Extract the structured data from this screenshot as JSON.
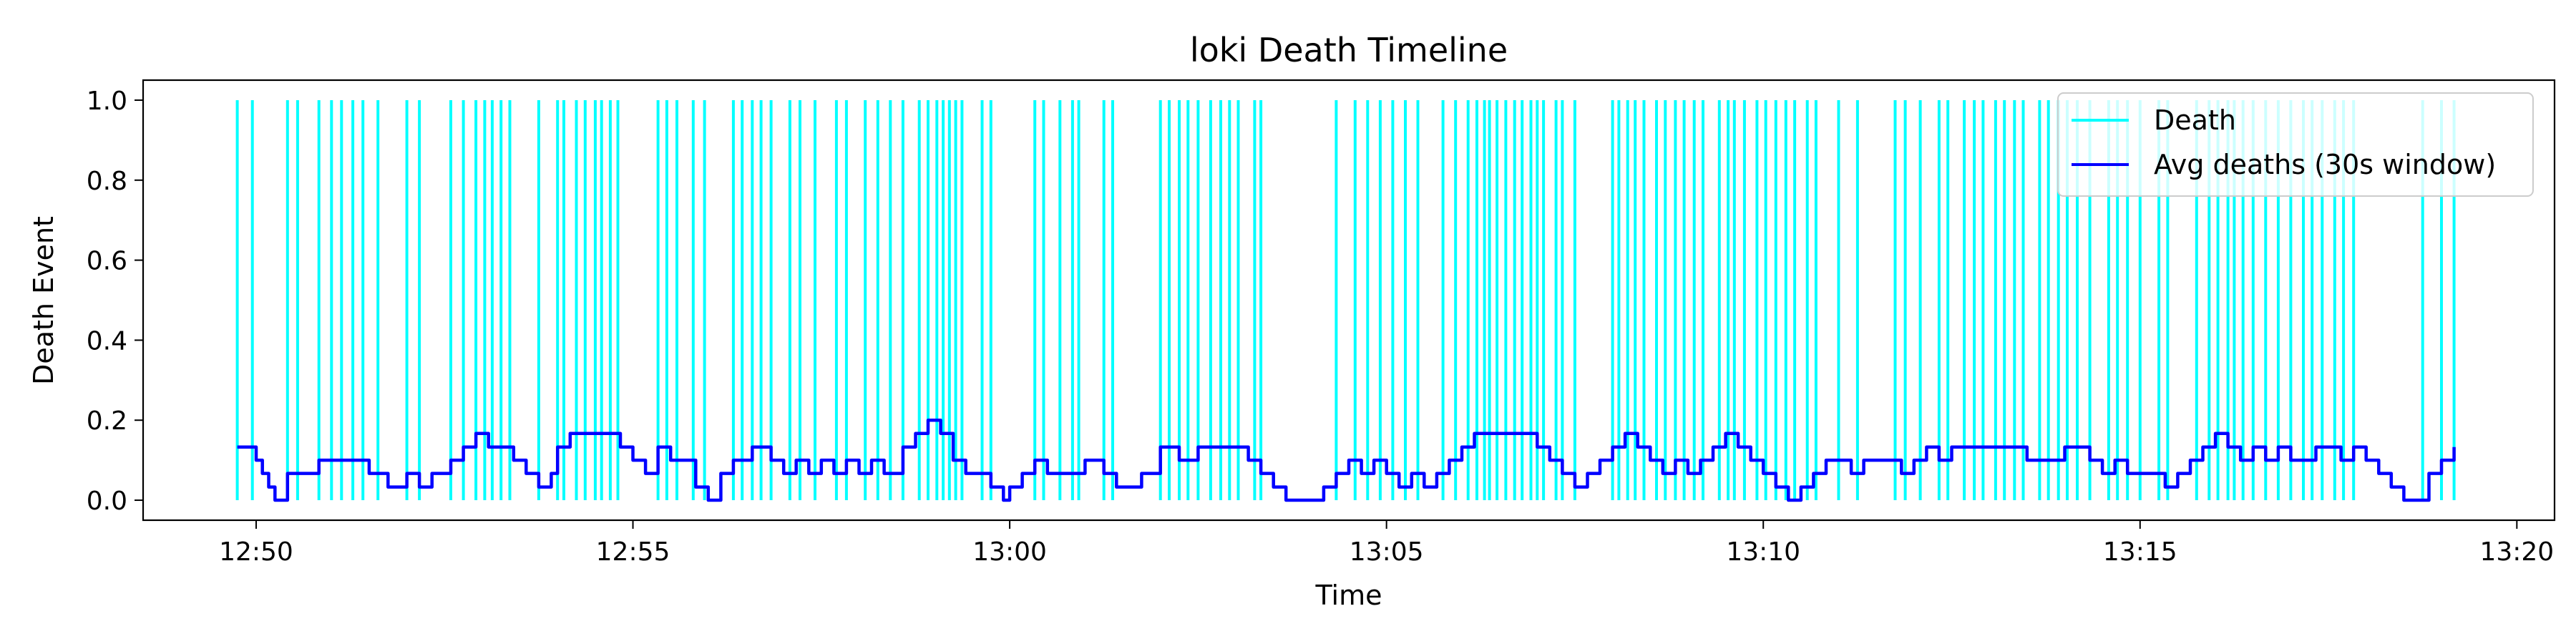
{
  "chart_data": {
    "type": "line",
    "title": "loki Death Timeline",
    "xlabel": "Time",
    "ylabel": "Death Event",
    "xlim": [
      "12:48:30",
      "13:20:30"
    ],
    "ylim": [
      -0.05,
      1.05
    ],
    "x_ticks": [
      "12:50",
      "12:55",
      "13:00",
      "13:05",
      "13:10",
      "13:15",
      "13:20"
    ],
    "y_ticks": [
      "0.0",
      "0.2",
      "0.4",
      "0.6",
      "0.8",
      "1.0"
    ],
    "grid": false,
    "legend_position": "top-right",
    "series": [
      {
        "name": "Death",
        "color": "#00FFFF",
        "style": "vertical-lines",
        "value": 1,
        "x": [
          "12:49:45",
          "12:49:57",
          "12:50:25",
          "12:50:33",
          "12:50:50",
          "12:51:00",
          "12:51:08",
          "12:51:17",
          "12:51:25",
          "12:51:37",
          "12:52:00",
          "12:52:10",
          "12:52:35",
          "12:52:45",
          "12:52:55",
          "12:53:02",
          "12:53:08",
          "12:53:15",
          "12:53:22",
          "12:53:45",
          "12:54:00",
          "12:54:05",
          "12:54:15",
          "12:54:22",
          "12:54:30",
          "12:54:35",
          "12:54:42",
          "12:54:48",
          "12:55:20",
          "12:55:27",
          "12:55:35",
          "12:55:48",
          "12:55:57",
          "12:56:20",
          "12:56:27",
          "12:56:35",
          "12:56:42",
          "12:56:50",
          "12:57:05",
          "12:57:13",
          "12:57:25",
          "12:57:42",
          "12:57:50",
          "12:58:05",
          "12:58:15",
          "12:58:25",
          "12:58:35",
          "12:58:48",
          "12:58:55",
          "12:59:02",
          "12:59:07",
          "12:59:12",
          "12:59:17",
          "12:59:22",
          "12:59:38",
          "12:59:45",
          "13:00:20",
          "13:00:27",
          "13:00:40",
          "13:00:50",
          "13:00:55",
          "13:01:15",
          "13:01:22",
          "13:02:00",
          "13:02:07",
          "13:02:15",
          "13:02:22",
          "13:02:30",
          "13:02:40",
          "13:02:48",
          "13:02:55",
          "13:03:02",
          "13:03:15",
          "13:03:20",
          "13:04:20",
          "13:04:35",
          "13:04:45",
          "13:04:55",
          "13:05:05",
          "13:05:15",
          "13:05:25",
          "13:05:45",
          "13:05:55",
          "13:06:05",
          "13:06:12",
          "13:06:18",
          "13:06:22",
          "13:06:28",
          "13:06:35",
          "13:06:42",
          "13:06:48",
          "13:06:55",
          "13:07:00",
          "13:07:05",
          "13:07:15",
          "13:07:20",
          "13:07:30",
          "13:08:00",
          "13:08:05",
          "13:08:12",
          "13:08:18",
          "13:08:25",
          "13:08:35",
          "13:08:42",
          "13:08:50",
          "13:08:57",
          "13:09:05",
          "13:09:12",
          "13:09:25",
          "13:09:32",
          "13:09:37",
          "13:09:45",
          "13:09:55",
          "13:10:02",
          "13:10:10",
          "13:10:18",
          "13:10:25",
          "13:10:35",
          "13:10:42",
          "13:11:00",
          "13:11:15",
          "13:11:45",
          "13:11:53",
          "13:12:05",
          "13:12:20",
          "13:12:27",
          "13:12:40",
          "13:12:48",
          "13:12:55",
          "13:13:05",
          "13:13:12",
          "13:13:20",
          "13:13:27",
          "13:13:40",
          "13:13:47",
          "13:13:55",
          "13:14:02",
          "13:14:10",
          "13:14:20",
          "13:14:35",
          "13:14:42",
          "13:14:50",
          "13:15:00",
          "13:15:15",
          "13:15:22",
          "13:15:45",
          "13:15:55",
          "13:16:02",
          "13:16:10",
          "13:16:15",
          "13:16:22",
          "13:16:30",
          "13:16:40",
          "13:16:50",
          "13:17:00",
          "13:17:10",
          "13:17:17",
          "13:17:25",
          "13:17:35",
          "13:17:42",
          "13:17:50",
          "13:18:45",
          "13:19:00",
          "13:19:10"
        ]
      },
      {
        "name": "Avg deaths (30s window)",
        "color": "#0000FF",
        "style": "step-line",
        "x": [
          "12:49:45",
          "12:50:00",
          "12:50:05",
          "12:50:10",
          "12:50:15",
          "12:50:25",
          "12:50:50",
          "12:51:00",
          "12:51:30",
          "12:51:45",
          "12:52:00",
          "12:52:10",
          "12:52:20",
          "12:52:35",
          "12:52:45",
          "12:52:55",
          "12:53:05",
          "12:53:25",
          "12:53:35",
          "12:53:45",
          "12:53:55",
          "12:54:00",
          "12:54:10",
          "12:54:20",
          "12:54:50",
          "12:55:00",
          "12:55:10",
          "12:55:20",
          "12:55:30",
          "12:55:50",
          "12:56:00",
          "12:56:10",
          "12:56:20",
          "12:56:35",
          "12:56:50",
          "12:57:00",
          "12:57:10",
          "12:57:20",
          "12:57:30",
          "12:57:40",
          "12:57:50",
          "12:58:00",
          "12:58:10",
          "12:58:20",
          "12:58:35",
          "12:58:45",
          "12:58:55",
          "12:59:05",
          "12:59:15",
          "12:59:25",
          "12:59:35",
          "12:59:45",
          "12:59:55",
          "13:00:00",
          "13:00:10",
          "13:00:20",
          "13:00:30",
          "13:00:45",
          "13:01:00",
          "13:01:15",
          "13:01:25",
          "13:01:35",
          "13:01:45",
          "13:02:00",
          "13:02:15",
          "13:02:30",
          "13:03:00",
          "13:03:10",
          "13:03:20",
          "13:03:30",
          "13:03:40",
          "13:04:10",
          "13:04:20",
          "13:04:30",
          "13:04:40",
          "13:04:50",
          "13:05:00",
          "13:05:10",
          "13:05:20",
          "13:05:30",
          "13:05:40",
          "13:05:50",
          "13:06:00",
          "13:06:10",
          "13:06:20",
          "13:07:00",
          "13:07:10",
          "13:07:20",
          "13:07:30",
          "13:07:40",
          "13:07:50",
          "13:08:00",
          "13:08:10",
          "13:08:20",
          "13:08:30",
          "13:08:40",
          "13:08:50",
          "13:09:00",
          "13:09:10",
          "13:09:20",
          "13:09:30",
          "13:09:40",
          "13:09:50",
          "13:10:00",
          "13:10:10",
          "13:10:20",
          "13:10:30",
          "13:10:40",
          "13:10:50",
          "13:11:00",
          "13:11:10",
          "13:11:20",
          "13:11:30",
          "13:11:40",
          "13:11:50",
          "13:12:00",
          "13:12:10",
          "13:12:20",
          "13:12:30",
          "13:13:00",
          "13:13:30",
          "13:14:00",
          "13:14:20",
          "13:14:30",
          "13:14:40",
          "13:14:50",
          "13:15:00",
          "13:15:10",
          "13:15:20",
          "13:15:30",
          "13:15:40",
          "13:15:50",
          "13:16:00",
          "13:16:10",
          "13:16:20",
          "13:16:30",
          "13:16:40",
          "13:16:50",
          "13:17:00",
          "13:17:20",
          "13:17:40",
          "13:17:50",
          "13:18:00",
          "13:18:10",
          "13:18:20",
          "13:18:30",
          "13:18:40",
          "13:18:50",
          "13:19:00",
          "13:19:10"
        ],
        "values": [
          0.133,
          0.1,
          0.067,
          0.033,
          0.0,
          0.067,
          0.1,
          0.1,
          0.067,
          0.033,
          0.067,
          0.033,
          0.067,
          0.1,
          0.133,
          0.167,
          0.133,
          0.1,
          0.067,
          0.033,
          0.067,
          0.133,
          0.167,
          0.167,
          0.133,
          0.1,
          0.067,
          0.133,
          0.1,
          0.033,
          0.0,
          0.067,
          0.1,
          0.133,
          0.1,
          0.067,
          0.1,
          0.067,
          0.1,
          0.067,
          0.1,
          0.067,
          0.1,
          0.067,
          0.133,
          0.167,
          0.2,
          0.167,
          0.1,
          0.067,
          0.067,
          0.033,
          0.0,
          0.033,
          0.067,
          0.1,
          0.067,
          0.067,
          0.1,
          0.067,
          0.033,
          0.033,
          0.067,
          0.133,
          0.1,
          0.133,
          0.133,
          0.1,
          0.067,
          0.033,
          0.0,
          0.033,
          0.067,
          0.1,
          0.067,
          0.1,
          0.067,
          0.033,
          0.067,
          0.033,
          0.067,
          0.1,
          0.133,
          0.167,
          0.167,
          0.133,
          0.1,
          0.067,
          0.033,
          0.067,
          0.1,
          0.133,
          0.167,
          0.133,
          0.1,
          0.067,
          0.1,
          0.067,
          0.1,
          0.133,
          0.167,
          0.133,
          0.1,
          0.067,
          0.033,
          0.0,
          0.033,
          0.067,
          0.1,
          0.1,
          0.067,
          0.1,
          0.1,
          0.1,
          0.067,
          0.1,
          0.133,
          0.1,
          0.133,
          0.133,
          0.1,
          0.133,
          0.1,
          0.067,
          0.1,
          0.067,
          0.067,
          0.067,
          0.033,
          0.067,
          0.1,
          0.133,
          0.167,
          0.133,
          0.1,
          0.133,
          0.1,
          0.133,
          0.1,
          0.133,
          0.1,
          0.133,
          0.1,
          0.067,
          0.033,
          0.0,
          0.0,
          0.067,
          0.1,
          0.133
        ]
      }
    ]
  }
}
